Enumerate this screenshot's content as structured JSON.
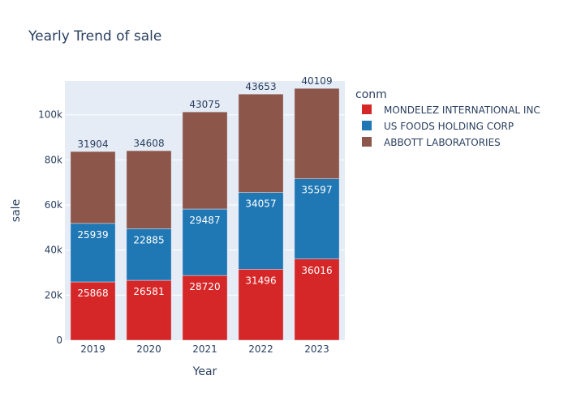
{
  "chart_data": {
    "type": "bar",
    "stacked": true,
    "title": "Yearly Trend of sale",
    "xlabel": "Year",
    "ylabel": "sale",
    "categories": [
      "2019",
      "2020",
      "2021",
      "2022",
      "2023"
    ],
    "ylim": [
      0,
      115000
    ],
    "yticks": [
      0,
      20000,
      40000,
      60000,
      80000,
      100000
    ],
    "ytick_labels": [
      "0",
      "20k",
      "40k",
      "60k",
      "80k",
      "100k"
    ],
    "grid": true,
    "legend": {
      "title": "conm",
      "placement": "right"
    },
    "series": [
      {
        "name": "MONDELEZ INTERNATIONAL INC",
        "color": "#d62728",
        "label_position": "inside",
        "values": [
          25868,
          26581,
          28720,
          31496,
          36016
        ]
      },
      {
        "name": "US FOODS HOLDING CORP",
        "color": "#1f77b4",
        "label_position": "inside",
        "values": [
          25939,
          22885,
          29487,
          34057,
          35597
        ]
      },
      {
        "name": "ABBOTT LABORATORIES",
        "color": "#8c564b",
        "label_position": "outside",
        "values": [
          31904,
          34608,
          43075,
          43653,
          40109
        ]
      }
    ]
  }
}
